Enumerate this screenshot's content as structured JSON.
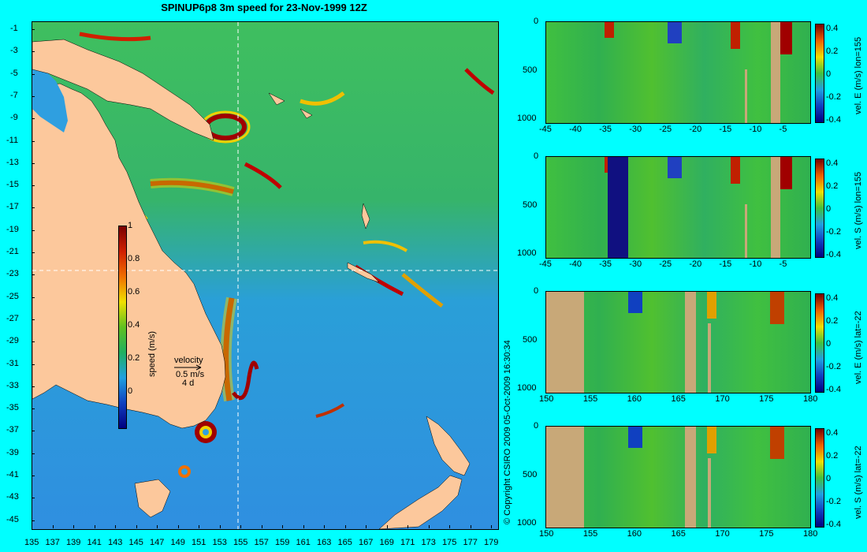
{
  "title": "SPINUP6p8 3m speed for 23-Nov-1999 12Z",
  "copyright": "© Copyright CSIRO 2009  05-Oct-2009 16:30:34",
  "map": {
    "lat_labels": [
      "-1",
      "-3",
      "-5",
      "-7",
      "-9",
      "-11",
      "-13",
      "-15",
      "-17",
      "-19",
      "-21",
      "-23",
      "-25",
      "-27",
      "-29",
      "-31",
      "-33",
      "-35",
      "-37",
      "-39",
      "-41",
      "-43",
      "-45"
    ],
    "lon_labels": [
      "135",
      "137",
      "139",
      "141",
      "143",
      "145",
      "147",
      "149",
      "151",
      "153",
      "155",
      "157",
      "159",
      "161",
      "163",
      "165",
      "167",
      "169",
      "171",
      "173",
      "175",
      "177",
      "179"
    ],
    "colorbar_ticks": [
      "1",
      "0.8",
      "0.6",
      "0.4",
      "0.2",
      "0"
    ],
    "colorbar_label": "speed (m/s)",
    "legend": {
      "title": "velocity",
      "speed": "0.5 m/s",
      "duration": "4 d"
    }
  },
  "sections": [
    {
      "label": "vel. E (m/s) lon=155",
      "x_labels": [
        "-45",
        "-40",
        "-35",
        "-30",
        "-25",
        "-20",
        "-15",
        "-10",
        "-5"
      ],
      "y_labels": [
        "0",
        "500",
        "1000"
      ],
      "cb_ticks": [
        "0.4",
        "0.2",
        "0",
        "-0.2",
        "-0.4"
      ]
    },
    {
      "label": "vel. S (m/s) lon=155",
      "x_labels": [
        "-45",
        "-40",
        "-35",
        "-30",
        "-25",
        "-20",
        "-15",
        "-10",
        "-5"
      ],
      "y_labels": [
        "0",
        "500",
        "1000"
      ],
      "cb_ticks": [
        "0.4",
        "0.2",
        "0",
        "-0.2",
        "-0.4"
      ]
    },
    {
      "label": "vel. E (m/s) lat=-22",
      "x_labels": [
        "150",
        "155",
        "160",
        "165",
        "170",
        "175",
        "180"
      ],
      "y_labels": [
        "0",
        "500",
        "1000"
      ],
      "cb_ticks": [
        "0.4",
        "0.2",
        "0",
        "-0.2",
        "-0.4"
      ]
    },
    {
      "label": "vel. S (m/s) lat=-22",
      "x_labels": [
        "150",
        "155",
        "160",
        "165",
        "170",
        "175",
        "180"
      ],
      "y_labels": [
        "0",
        "500",
        "1000"
      ],
      "cb_ticks": [
        "0.4",
        "0.2",
        "0",
        "-0.2",
        "-0.4"
      ]
    }
  ]
}
